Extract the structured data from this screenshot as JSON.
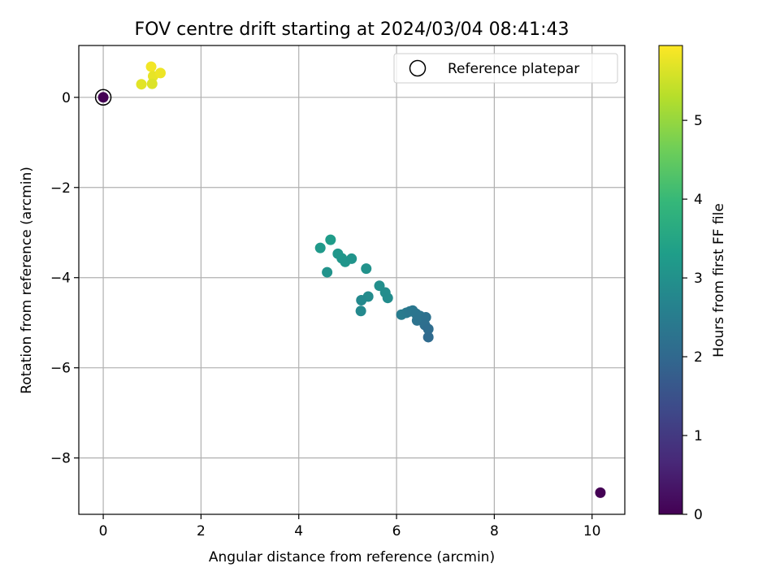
{
  "chart_data": {
    "type": "scatter",
    "title": "FOV centre drift starting at 2024/03/04 08:41:43",
    "xlabel": "Angular distance from reference (arcmin)",
    "ylabel": "Rotation from reference (arcmin)",
    "xlim": [
      -0.5,
      10.67
    ],
    "ylim": [
      -9.25,
      1.15
    ],
    "xticks": [
      0,
      2,
      4,
      6,
      8,
      10
    ],
    "yticks": [
      -8,
      -6,
      -4,
      -2,
      0
    ],
    "grid": true,
    "legend": {
      "position": "upper right",
      "entries": [
        "Reference platepar"
      ]
    },
    "reference_point": {
      "x": 0,
      "y": 0
    },
    "colorbar": {
      "label": "Hours from first FF file",
      "colormap": "viridis",
      "range": [
        0,
        5.95
      ],
      "ticks": [
        0,
        1,
        2,
        3,
        4,
        5
      ]
    },
    "points": [
      {
        "x": 0.0,
        "y": 0.0,
        "hours": 0.0
      },
      {
        "x": 10.17,
        "y": -8.77,
        "hours": 0.0
      },
      {
        "x": 0.98,
        "y": 0.68,
        "hours": 5.85
      },
      {
        "x": 1.02,
        "y": 0.47,
        "hours": 5.75
      },
      {
        "x": 1.17,
        "y": 0.54,
        "hours": 5.8
      },
      {
        "x": 0.78,
        "y": 0.29,
        "hours": 5.7
      },
      {
        "x": 1.0,
        "y": 0.3,
        "hours": 5.65
      },
      {
        "x": 4.65,
        "y": -3.16,
        "hours": 3.25
      },
      {
        "x": 4.44,
        "y": -3.34,
        "hours": 3.2
      },
      {
        "x": 4.8,
        "y": -3.47,
        "hours": 3.15
      },
      {
        "x": 4.88,
        "y": -3.57,
        "hours": 3.12
      },
      {
        "x": 4.95,
        "y": -3.65,
        "hours": 3.1
      },
      {
        "x": 5.08,
        "y": -3.58,
        "hours": 3.08
      },
      {
        "x": 4.58,
        "y": -3.88,
        "hours": 3.05
      },
      {
        "x": 5.38,
        "y": -3.8,
        "hours": 3.02
      },
      {
        "x": 5.65,
        "y": -4.18,
        "hours": 2.95
      },
      {
        "x": 5.77,
        "y": -4.33,
        "hours": 2.9
      },
      {
        "x": 5.82,
        "y": -4.45,
        "hours": 2.88
      },
      {
        "x": 5.42,
        "y": -4.42,
        "hours": 2.85
      },
      {
        "x": 5.28,
        "y": -4.5,
        "hours": 2.82
      },
      {
        "x": 5.27,
        "y": -4.74,
        "hours": 2.8
      },
      {
        "x": 6.1,
        "y": -4.82,
        "hours": 2.5
      },
      {
        "x": 6.2,
        "y": -4.78,
        "hours": 2.45
      },
      {
        "x": 6.27,
        "y": -4.75,
        "hours": 2.4
      },
      {
        "x": 6.33,
        "y": -4.73,
        "hours": 2.35
      },
      {
        "x": 6.4,
        "y": -4.8,
        "hours": 2.32
      },
      {
        "x": 6.48,
        "y": -4.85,
        "hours": 2.28
      },
      {
        "x": 6.42,
        "y": -4.95,
        "hours": 2.25
      },
      {
        "x": 6.6,
        "y": -4.88,
        "hours": 2.2
      },
      {
        "x": 6.58,
        "y": -5.05,
        "hours": 2.15
      },
      {
        "x": 6.65,
        "y": -5.14,
        "hours": 2.1
      },
      {
        "x": 6.65,
        "y": -5.32,
        "hours": 2.05
      }
    ]
  }
}
